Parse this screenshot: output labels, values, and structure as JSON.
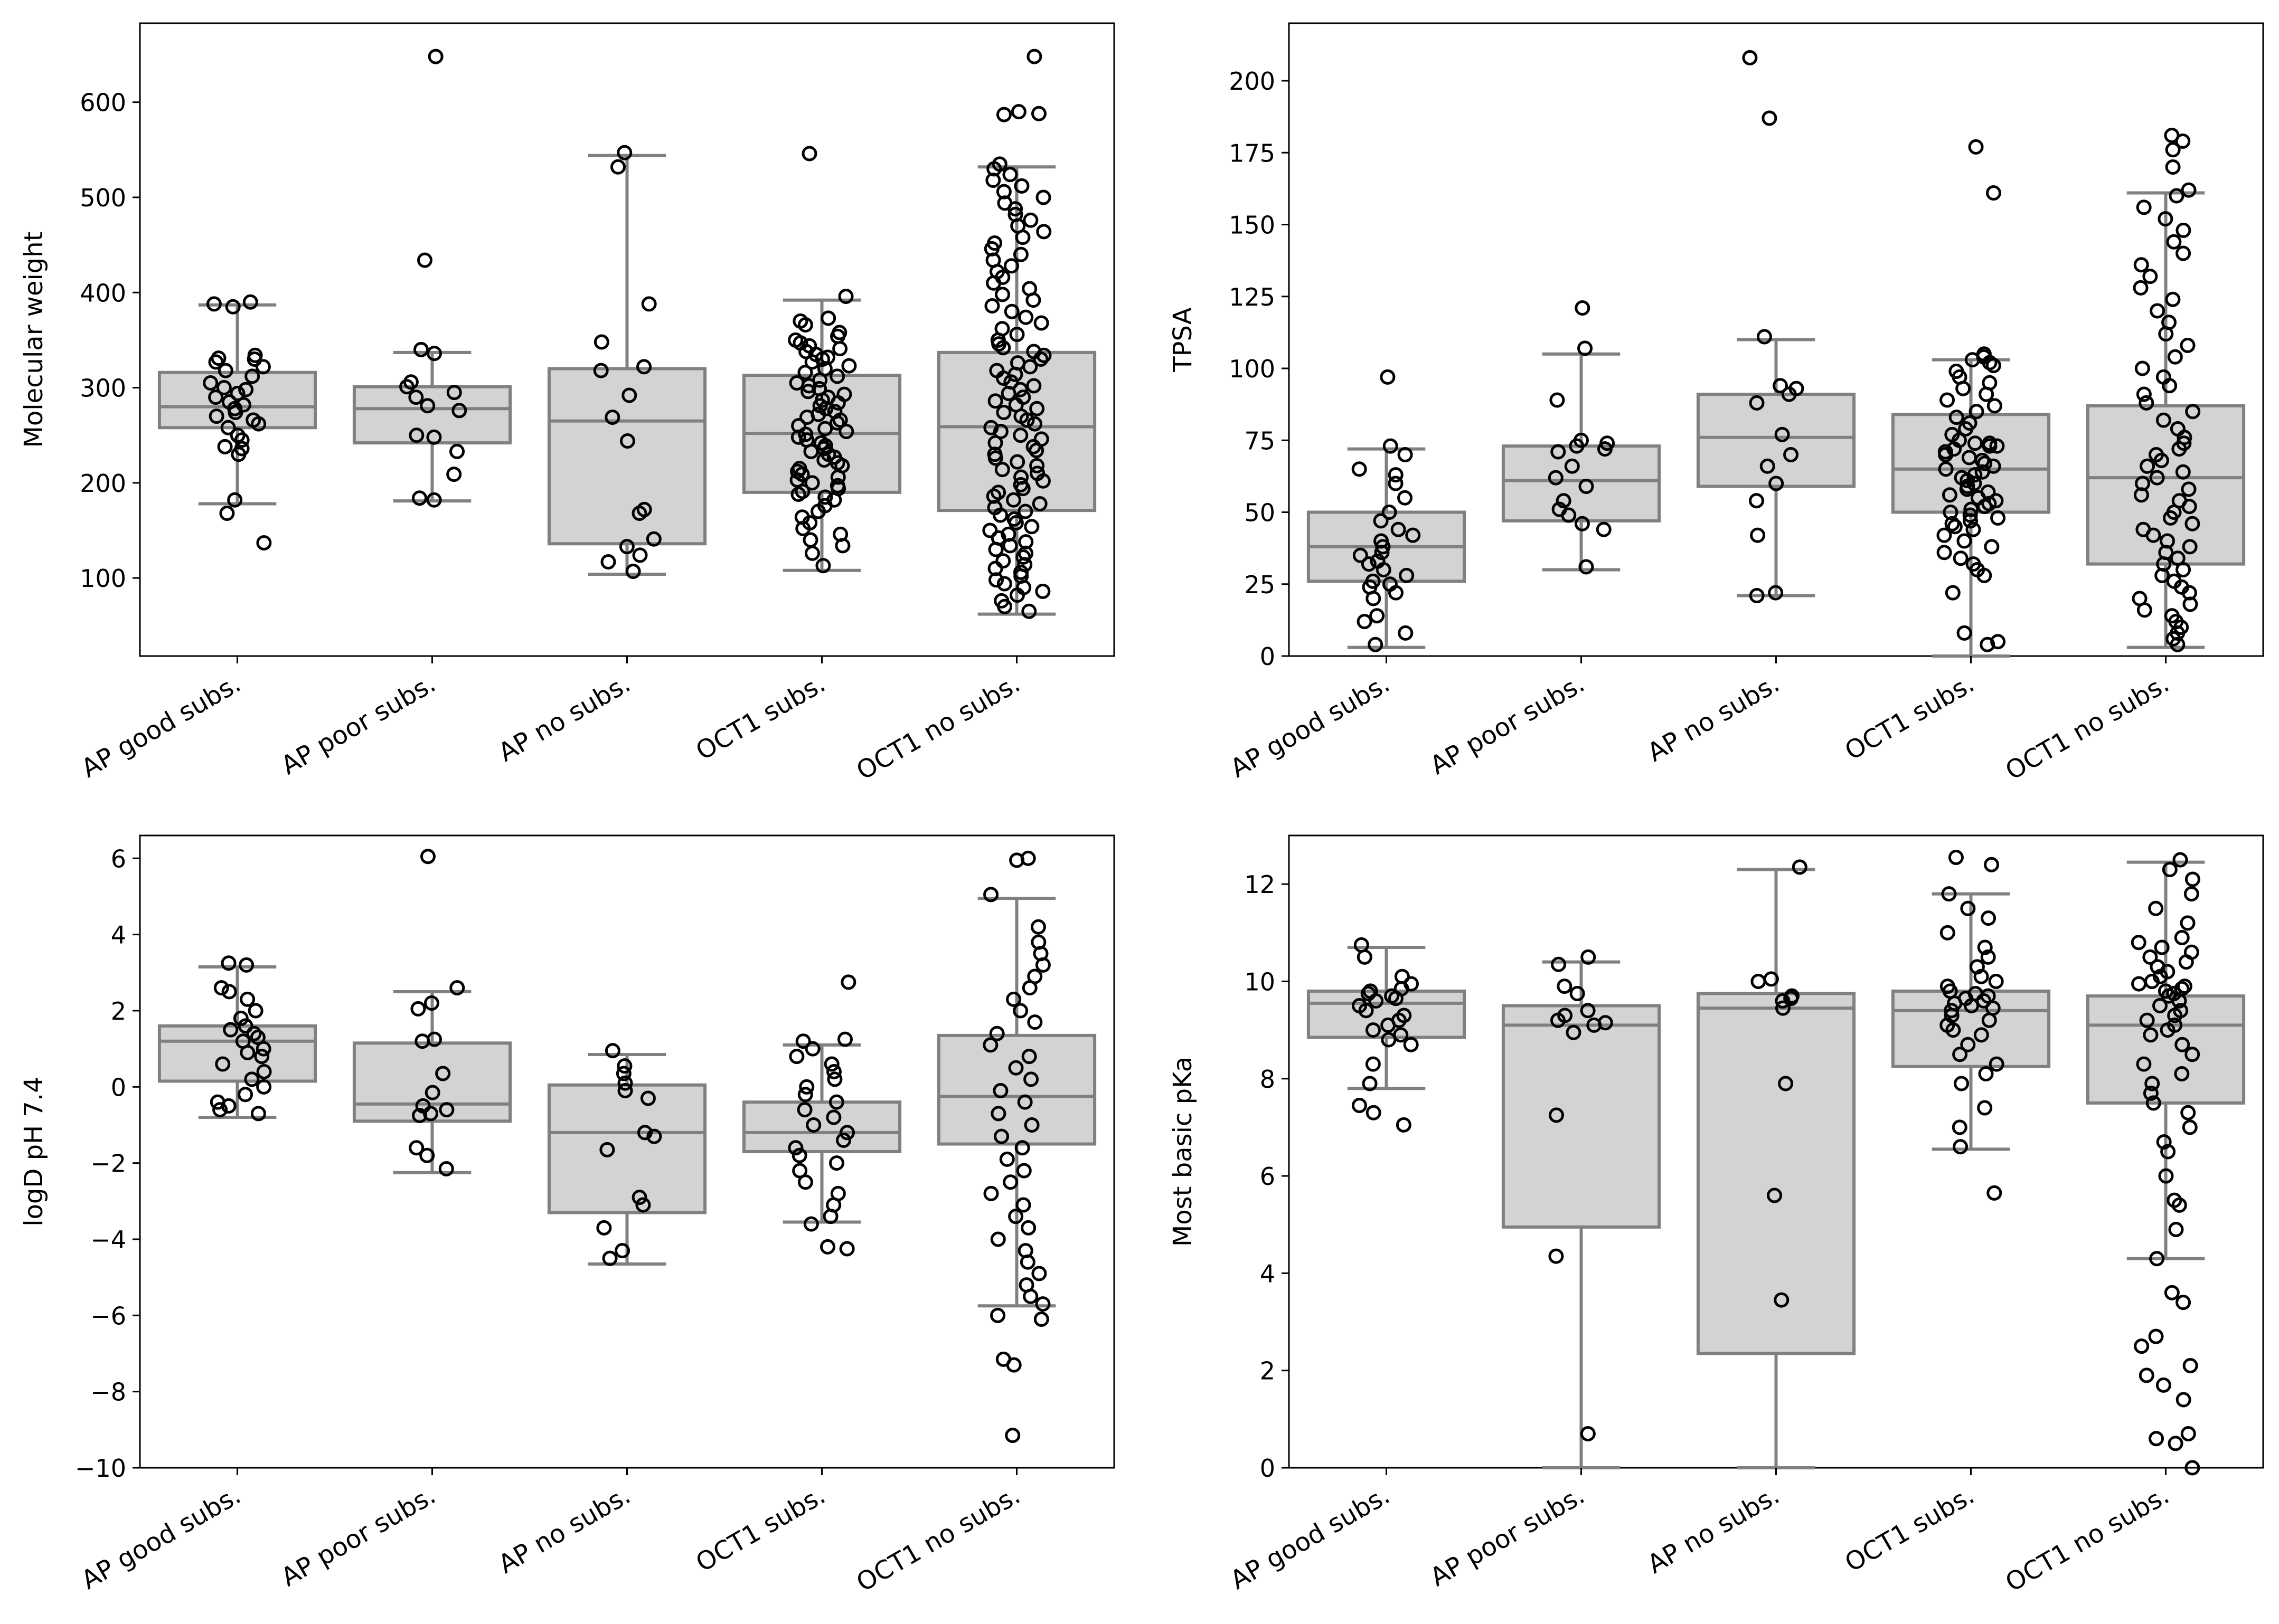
{
  "colors": {
    "box_fill": "#d3d3d3",
    "box_line": "#808080",
    "point_edge": "#000000",
    "axis": "#000000"
  },
  "chart_data": [
    {
      "type": "box",
      "ylabel": "Molecular weight",
      "ylim": [
        18,
        683
      ],
      "yticks": [
        100,
        200,
        300,
        400,
        500,
        600
      ],
      "categories": [
        "AP good subs.",
        "AP poor subs.",
        "AP no subs.",
        "OCT1 subs.",
        "OCT1 no subs."
      ],
      "boxes": [
        {
          "whislo": 178,
          "q1": 258,
          "med": 280,
          "q3": 316,
          "whishi": 387
        },
        {
          "whislo": 181,
          "q1": 242,
          "med": 278,
          "q3": 301,
          "whishi": 337
        },
        {
          "whislo": 104,
          "q1": 136,
          "med": 265,
          "q3": 320,
          "whishi": 544
        },
        {
          "whislo": 108,
          "q1": 190,
          "med": 252,
          "q3": 313,
          "whishi": 392
        },
        {
          "whislo": 62,
          "q1": 171,
          "med": 259,
          "q3": 337,
          "whishi": 532
        }
      ],
      "points": [
        [
          390,
          388,
          385,
          334,
          331,
          330,
          327,
          322,
          318,
          312,
          305,
          300,
          298,
          294,
          290,
          285,
          282,
          278,
          274,
          270,
          266,
          262,
          258,
          250,
          245,
          238,
          236,
          230,
          182,
          168,
          137
        ],
        [
          648,
          434,
          340,
          336,
          306,
          301,
          295,
          290,
          281,
          276,
          250,
          248,
          233,
          209,
          184,
          182
        ],
        [
          547,
          532,
          388,
          348,
          322,
          318,
          292,
          269,
          244,
          172,
          168,
          141,
          133,
          124,
          117,
          107
        ],
        [
          546,
          396,
          373,
          370,
          366,
          358,
          354,
          350,
          347,
          344,
          341,
          338,
          335,
          332,
          330,
          327,
          323,
          320,
          316,
          312,
          308,
          305,
          302,
          299,
          296,
          293,
          290,
          287,
          284,
          281,
          278,
          275,
          272,
          269,
          266,
          263,
          260,
          257,
          254,
          251,
          248,
          245,
          242,
          239,
          236,
          233,
          230,
          227,
          224,
          221,
          218,
          215,
          212,
          209,
          206,
          203,
          200,
          197,
          194,
          191,
          188,
          185,
          182,
          176,
          170,
          164,
          158,
          152,
          146,
          140,
          134,
          126,
          113
        ],
        [
          648,
          590,
          588,
          587,
          535,
          530,
          524,
          518,
          512,
          506,
          500,
          494,
          488,
          482,
          476,
          470,
          464,
          458,
          452,
          446,
          440,
          434,
          428,
          422,
          416,
          410,
          404,
          398,
          392,
          386,
          380,
          374,
          368,
          362,
          356,
          350,
          346,
          342,
          338,
          334,
          330,
          326,
          322,
          318,
          314,
          310,
          306,
          302,
          298,
          294,
          290,
          286,
          282,
          278,
          274,
          270,
          266,
          262,
          258,
          254,
          250,
          246,
          242,
          238,
          234,
          230,
          226,
          222,
          218,
          214,
          210,
          206,
          202,
          198,
          194,
          190,
          186,
          182,
          178,
          174,
          170,
          166,
          162,
          158,
          154,
          150,
          146,
          142,
          138,
          134,
          130,
          126,
          122,
          118,
          114,
          110,
          106,
          102,
          98,
          94,
          90,
          86,
          82,
          76,
          70,
          65
        ]
      ]
    },
    {
      "type": "box",
      "ylabel": "TPSA",
      "ylim": [
        0,
        220
      ],
      "yticks": [
        0,
        25,
        50,
        75,
        100,
        125,
        150,
        175,
        200
      ],
      "categories": [
        "AP good subs.",
        "AP poor subs.",
        "AP no subs.",
        "OCT1 subs.",
        "OCT1 no subs."
      ],
      "boxes": [
        {
          "whislo": 3,
          "q1": 26,
          "med": 38,
          "q3": 50,
          "whishi": 72
        },
        {
          "whislo": 30,
          "q1": 47,
          "med": 61,
          "q3": 73,
          "whishi": 105
        },
        {
          "whislo": 21,
          "q1": 59,
          "med": 76,
          "q3": 91,
          "whishi": 110
        },
        {
          "whislo": 0,
          "q1": 50,
          "med": 65,
          "q3": 84,
          "whishi": 103
        },
        {
          "whislo": 3,
          "q1": 32,
          "med": 62,
          "q3": 87,
          "whishi": 161
        }
      ],
      "points": [
        [
          97,
          73,
          70,
          65,
          63,
          60,
          55,
          50,
          47,
          44,
          42,
          40,
          38,
          36,
          35,
          33,
          32,
          30,
          28,
          26,
          25,
          24,
          22,
          20,
          14,
          12,
          8,
          4
        ],
        [
          121,
          107,
          89,
          75,
          74,
          73,
          72,
          71,
          66,
          62,
          59,
          54,
          51,
          49,
          46,
          44,
          31
        ],
        [
          208,
          187,
          111,
          94,
          93,
          91,
          88,
          77,
          70,
          66,
          60,
          54,
          42,
          22,
          21
        ],
        [
          177,
          161,
          105,
          104,
          103,
          102,
          101,
          99,
          97,
          95,
          93,
          91,
          89,
          87,
          85,
          83,
          81,
          79,
          77,
          75,
          74,
          74,
          73,
          73,
          72,
          71,
          70,
          69,
          68,
          67,
          66,
          65,
          64,
          63,
          62,
          61,
          60,
          59,
          58,
          57,
          56,
          55,
          54,
          53,
          52,
          51,
          50,
          49,
          48,
          47,
          46,
          45,
          44,
          42,
          40,
          38,
          36,
          34,
          32,
          30,
          28,
          22,
          8,
          5,
          4
        ],
        [
          181,
          179,
          176,
          170,
          162,
          160,
          156,
          152,
          148,
          144,
          140,
          136,
          132,
          128,
          124,
          120,
          116,
          112,
          108,
          104,
          100,
          97,
          94,
          91,
          88,
          85,
          82,
          79,
          76,
          74,
          72,
          70,
          68,
          66,
          64,
          62,
          60,
          58,
          56,
          54,
          52,
          50,
          48,
          46,
          44,
          42,
          40,
          38,
          36,
          34,
          32,
          30,
          28,
          26,
          24,
          22,
          20,
          18,
          16,
          14,
          12,
          10,
          8,
          6,
          4
        ]
      ]
    },
    {
      "type": "box",
      "ylabel": "logD pH 7.4",
      "ylim": [
        -10,
        6.6
      ],
      "yticks": [
        -10,
        -8,
        -6,
        -4,
        -2,
        0,
        2,
        4,
        6
      ],
      "categories": [
        "AP good subs.",
        "AP poor subs.",
        "AP no subs.",
        "OCT1 subs.",
        "OCT1 no subs."
      ],
      "boxes": [
        {
          "whislo": -0.8,
          "q1": 0.15,
          "med": 1.2,
          "q3": 1.6,
          "whishi": 3.15
        },
        {
          "whislo": -2.25,
          "q1": -0.9,
          "med": -0.45,
          "q3": 1.15,
          "whishi": 2.5
        },
        {
          "whislo": -4.65,
          "q1": -3.3,
          "med": -1.2,
          "q3": 0.05,
          "whishi": 0.85
        },
        {
          "whislo": -3.55,
          "q1": -1.7,
          "med": -1.2,
          "q3": -0.4,
          "whishi": 1.1
        },
        {
          "whislo": -5.75,
          "q1": -1.5,
          "med": -0.25,
          "q3": 1.35,
          "whishi": 4.95
        }
      ],
      "points": [
        [
          3.25,
          3.2,
          2.6,
          2.5,
          2.3,
          2.0,
          1.8,
          1.6,
          1.5,
          1.4,
          1.3,
          1.2,
          1.0,
          0.9,
          0.8,
          0.6,
          0.4,
          0.2,
          0.0,
          -0.2,
          -0.4,
          -0.5,
          -0.6,
          -0.7
        ],
        [
          6.05,
          2.6,
          2.2,
          2.05,
          1.25,
          1.2,
          0.35,
          -0.15,
          -0.5,
          -0.6,
          -0.7,
          -0.75,
          -1.6,
          -1.8,
          -2.15
        ],
        [
          0.95,
          0.55,
          0.35,
          0.1,
          -0.1,
          -0.3,
          -1.2,
          -1.3,
          -1.65,
          -2.9,
          -3.1,
          -3.7,
          -4.3,
          -4.5
        ],
        [
          2.75,
          1.25,
          1.2,
          1.0,
          0.8,
          0.6,
          0.4,
          0.2,
          0.0,
          -0.2,
          -0.4,
          -0.6,
          -0.8,
          -1.0,
          -1.2,
          -1.4,
          -1.6,
          -1.8,
          -2.0,
          -2.2,
          -2.5,
          -2.8,
          -3.1,
          -3.4,
          -3.6,
          -4.2,
          -4.25
        ],
        [
          6.0,
          5.95,
          5.05,
          4.2,
          3.8,
          3.5,
          3.2,
          2.9,
          2.6,
          2.3,
          2.0,
          1.7,
          1.4,
          1.1,
          0.8,
          0.5,
          0.2,
          -0.1,
          -0.4,
          -0.7,
          -1.0,
          -1.3,
          -1.6,
          -1.9,
          -2.2,
          -2.5,
          -2.8,
          -3.1,
          -3.4,
          -3.7,
          -4.0,
          -4.3,
          -4.6,
          -4.9,
          -5.2,
          -5.5,
          -5.7,
          -6.0,
          -6.1,
          -7.15,
          -7.3,
          -9.15
        ]
      ]
    },
    {
      "type": "box",
      "ylabel": "Most basic pKa",
      "ylim": [
        0,
        13
      ],
      "yticks": [
        0,
        2,
        4,
        6,
        8,
        10,
        12
      ],
      "categories": [
        "AP good subs.",
        "AP poor subs.",
        "AP no subs.",
        "OCT1 subs.",
        "OCT1 no subs."
      ],
      "boxes": [
        {
          "whislo": 7.8,
          "q1": 8.85,
          "med": 9.55,
          "q3": 9.8,
          "whishi": 10.7
        },
        {
          "whislo": 0.0,
          "q1": 4.95,
          "med": 9.1,
          "q3": 9.5,
          "whishi": 10.4
        },
        {
          "whislo": 0.0,
          "q1": 2.35,
          "med": 9.45,
          "q3": 9.75,
          "whishi": 12.3
        },
        {
          "whislo": 6.55,
          "q1": 8.25,
          "med": 9.4,
          "q3": 9.8,
          "whishi": 11.8
        },
        {
          "whislo": 4.3,
          "q1": 7.5,
          "med": 9.1,
          "q3": 9.7,
          "whishi": 12.45
        }
      ],
      "points": [
        [
          10.75,
          10.5,
          10.1,
          9.95,
          9.85,
          9.8,
          9.75,
          9.7,
          9.65,
          9.6,
          9.5,
          9.4,
          9.3,
          9.2,
          9.1,
          9.0,
          8.9,
          8.8,
          8.7,
          8.3,
          7.9,
          7.45,
          7.3,
          7.05
        ],
        [
          10.5,
          10.35,
          9.9,
          9.75,
          9.4,
          9.3,
          9.2,
          9.15,
          9.1,
          8.95,
          7.25,
          4.35,
          0.7
        ],
        [
          12.35,
          10.05,
          10.0,
          9.7,
          9.65,
          9.6,
          9.45,
          7.9,
          5.6,
          3.45
        ],
        [
          12.55,
          12.4,
          11.8,
          11.5,
          11.3,
          11.0,
          10.7,
          10.5,
          10.3,
          10.1,
          10.0,
          9.9,
          9.8,
          9.75,
          9.7,
          9.65,
          9.6,
          9.55,
          9.5,
          9.45,
          9.4,
          9.3,
          9.2,
          9.1,
          9.0,
          8.9,
          8.7,
          8.5,
          8.3,
          8.1,
          7.9,
          7.4,
          7.0,
          6.6,
          5.65
        ],
        [
          12.5,
          12.3,
          12.1,
          11.8,
          11.5,
          11.2,
          10.9,
          10.8,
          10.7,
          10.6,
          10.5,
          10.4,
          10.3,
          10.2,
          10.1,
          10.0,
          9.95,
          9.9,
          9.85,
          9.8,
          9.75,
          9.7,
          9.6,
          9.5,
          9.4,
          9.3,
          9.2,
          9.1,
          9.0,
          8.9,
          8.7,
          8.5,
          8.3,
          8.1,
          7.9,
          7.7,
          7.5,
          7.3,
          7.0,
          6.7,
          6.5,
          6.0,
          5.5,
          5.4,
          4.9,
          4.3,
          3.6,
          3.4,
          2.7,
          2.5,
          2.1,
          1.9,
          1.7,
          1.4,
          0.7,
          0.6,
          0.5,
          0.0
        ]
      ]
    }
  ]
}
